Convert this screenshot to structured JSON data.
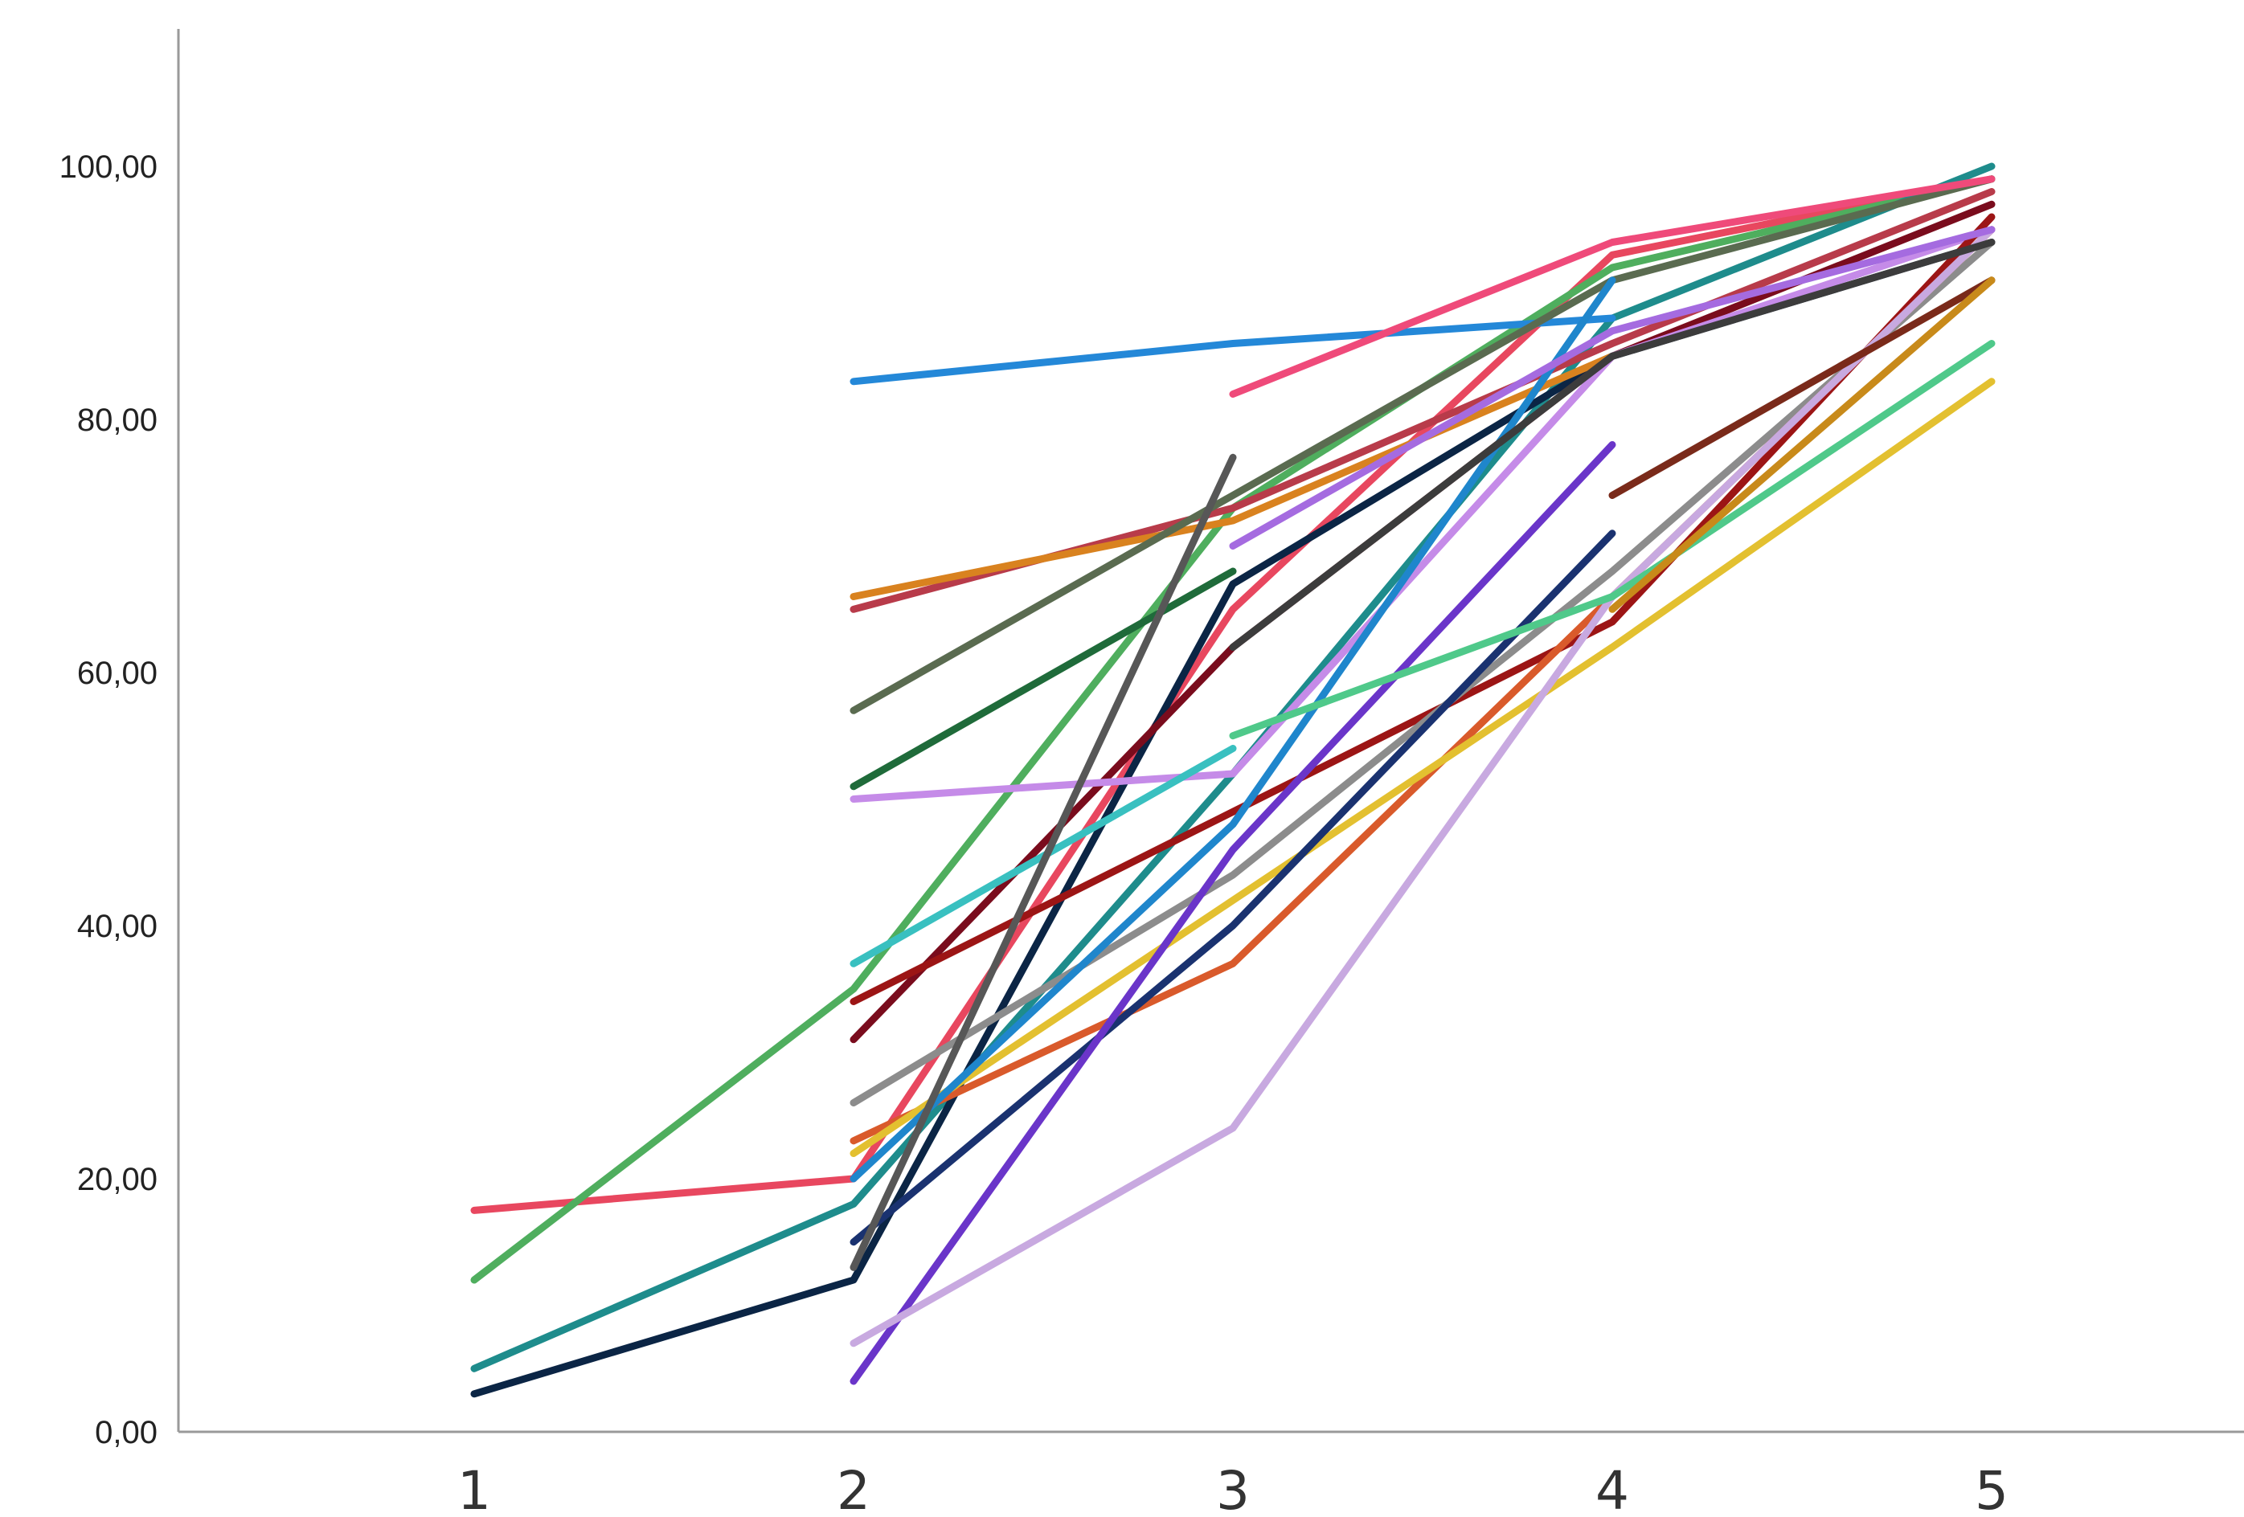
{
  "chart_data": {
    "type": "line",
    "title": "",
    "xlabel": "",
    "ylabel": "",
    "x": [
      1,
      2,
      3,
      4,
      5
    ],
    "x_tick_labels": [
      "1",
      "2",
      "3",
      "4",
      "5"
    ],
    "y_tick_labels": [
      "0,00",
      "20,00",
      "40,00",
      "60,00",
      "80,00",
      "100,00"
    ],
    "y_ticks": [
      0,
      20,
      40,
      60,
      80,
      100
    ],
    "ylim": [
      0,
      111
    ],
    "xlim": [
      0,
      5.65
    ],
    "grid": false,
    "legend": "none",
    "series": [
      {
        "color": "#e8475f",
        "values": [
          17.5,
          20.0,
          65.0,
          93.0,
          99.0
        ]
      },
      {
        "color": "#4fae5e",
        "values": [
          12.0,
          35.0,
          73.0,
          92.0,
          99.0
        ]
      },
      {
        "color": "#1e8c8c",
        "values": [
          5.0,
          18.0,
          52.0,
          88.0,
          100.0
        ]
      },
      {
        "color": "#0b2545",
        "values": [
          3.0,
          12.0,
          67.0,
          85.0,
          94.0
        ]
      },
      {
        "color": "#7a0c1d",
        "values": [
          null,
          31.0,
          62.0,
          85.0,
          97.0
        ]
      },
      {
        "color": "#2488d8",
        "values": [
          null,
          83.0,
          86.0,
          88.0,
          null
        ]
      },
      {
        "color": "#b83b4a",
        "values": [
          null,
          65.0,
          73.0,
          86.0,
          98.0
        ]
      },
      {
        "color": "#d9821f",
        "values": [
          null,
          66.0,
          72.0,
          85.0,
          null
        ]
      },
      {
        "color": "#5a6b50",
        "values": [
          null,
          57.0,
          74.0,
          91.0,
          99.0
        ]
      },
      {
        "color": "#1f6b3a",
        "values": [
          null,
          51.0,
          68.0,
          null,
          null
        ]
      },
      {
        "color": "#c58be8",
        "values": [
          null,
          50.0,
          52.0,
          85.0,
          95.0
        ]
      },
      {
        "color": "#39c0c0",
        "values": [
          null,
          37.0,
          54.0,
          null,
          null
        ]
      },
      {
        "color": "#9c1515",
        "values": [
          null,
          34.0,
          49.0,
          64.0,
          96.0
        ]
      },
      {
        "color": "#8c8c8c",
        "values": [
          null,
          26.0,
          44.0,
          68.0,
          94.0
        ]
      },
      {
        "color": "#d95a2b",
        "values": [
          null,
          23.0,
          37.0,
          66.0,
          95.0
        ]
      },
      {
        "color": "#e3c030",
        "values": [
          null,
          22.0,
          42.0,
          62.0,
          83.0
        ]
      },
      {
        "color": "#1f86cc",
        "values": [
          null,
          20.0,
          48.0,
          91.0,
          null
        ]
      },
      {
        "color": "#1a3270",
        "values": [
          null,
          15.0,
          40.0,
          71.0,
          null
        ]
      },
      {
        "color": "#575757",
        "values": [
          null,
          13.0,
          77.0,
          null,
          null
        ]
      },
      {
        "color": "#6a35c9",
        "values": [
          null,
          4.0,
          46.0,
          78.0,
          null
        ]
      },
      {
        "color": "#c8a9e0",
        "values": [
          null,
          7.0,
          24.0,
          66.0,
          95.0
        ]
      },
      {
        "color": "#4fc98a",
        "values": [
          null,
          null,
          55.0,
          66.0,
          86.0
        ]
      },
      {
        "color": "#ef4a7a",
        "values": [
          null,
          null,
          82.0,
          94.0,
          99.0
        ]
      },
      {
        "color": "#a56be0",
        "values": [
          null,
          null,
          70.0,
          87.0,
          95.0
        ]
      },
      {
        "color": "#3c3c3c",
        "values": [
          null,
          null,
          62.0,
          85.0,
          94.0
        ]
      },
      {
        "color": "#7a2a1a",
        "values": [
          null,
          null,
          null,
          74.0,
          91.0
        ]
      },
      {
        "color": "#c88a1a",
        "values": [
          null,
          null,
          null,
          65.0,
          91.0
        ]
      }
    ]
  }
}
